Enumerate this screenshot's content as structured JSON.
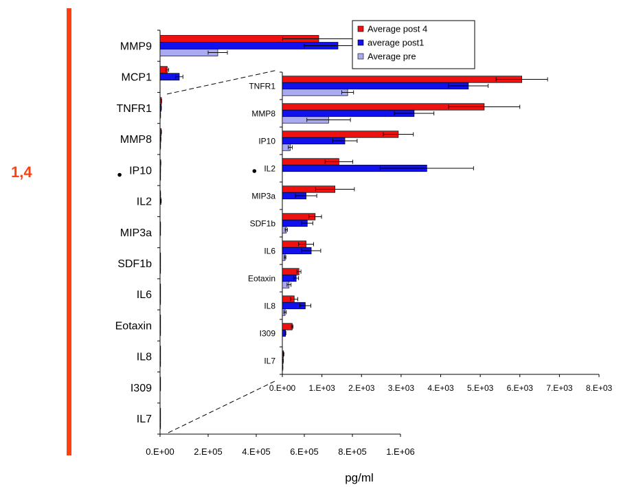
{
  "side_label": "1,4",
  "colors": {
    "accent_bar": "#ff4010",
    "series": [
      "#ee1111",
      "#1111ee",
      "#aaaaf2"
    ]
  },
  "chart_data": [
    {
      "type": "bar",
      "orientation": "horizontal",
      "categories": [
        "MMP9",
        "MCP1",
        "TNFR1",
        "MMP8",
        "IP10",
        "IL2",
        "MIP3a",
        "SDF1b",
        "IL6",
        "Eotaxin",
        "IL8",
        "I309",
        "IL7"
      ],
      "tick_labels": [
        "0.E+00",
        "2.E+05",
        "4.E+05",
        "6.E+05",
        "8.E+05",
        "1.E+06"
      ],
      "xlabel": "pg/ml",
      "xlim": [
        0,
        1000000
      ],
      "bullet_category": "IP10",
      "series": [
        {
          "name": "Average post 4",
          "values": [
            660000,
            30000,
            6000,
            5000,
            3000,
            1500,
            1300,
            800,
            600,
            500,
            400,
            250,
            30
          ],
          "errors": [
            150000,
            6000,
            700,
            900,
            400,
            400,
            500,
            150,
            100,
            50,
            60,
            10,
            5
          ]
        },
        {
          "name": "average post1",
          "values": [
            740000,
            80000,
            5000,
            3300,
            1600,
            3700,
            600,
            600,
            700,
            400,
            600,
            80,
            20
          ],
          "errors": [
            140000,
            15000,
            500,
            500,
            300,
            1200,
            300,
            100,
            150,
            50,
            150,
            10,
            5
          ]
        },
        {
          "name": "Average pre",
          "values": [
            240000,
            0,
            1700,
            1150,
            200,
            0,
            0,
            100,
            70,
            170,
            70,
            0,
            10
          ],
          "errors": [
            40000,
            0,
            100,
            550,
            50,
            0,
            0,
            30,
            20,
            50,
            30,
            0,
            3
          ]
        }
      ]
    },
    {
      "type": "bar",
      "orientation": "horizontal",
      "categories": [
        "TNFR1",
        "MMP8",
        "IP10",
        "IL2",
        "MIP3a",
        "SDF1b",
        "IL6",
        "Eotaxin",
        "IL8",
        "I309",
        "IL7"
      ],
      "tick_labels": [
        "0.E+00",
        "1.E+03",
        "2.E+03",
        "3.E+03",
        "4.E+03",
        "5.E+03",
        "6.E+03",
        "7.E+03",
        "8.E+03"
      ],
      "xlim": [
        0,
        8000
      ],
      "bullet_category": "IL2",
      "series": [
        {
          "name": "Average post 4",
          "values": [
            6050,
            5100,
            2930,
            1430,
            1330,
            830,
            600,
            420,
            300,
            250,
            30
          ],
          "errors": [
            650,
            900,
            380,
            350,
            490,
            160,
            190,
            50,
            90,
            20,
            10
          ]
        },
        {
          "name": "average post1",
          "values": [
            4700,
            3330,
            1580,
            3650,
            600,
            630,
            730,
            350,
            580,
            80,
            20
          ],
          "errors": [
            500,
            500,
            310,
            1180,
            270,
            140,
            240,
            60,
            140,
            10,
            5
          ]
        },
        {
          "name": "Average pre",
          "values": [
            1650,
            1170,
            200,
            0,
            0,
            100,
            70,
            170,
            70,
            0,
            10
          ],
          "errors": [
            150,
            550,
            50,
            0,
            0,
            30,
            20,
            50,
            30,
            0,
            3
          ]
        }
      ]
    }
  ]
}
